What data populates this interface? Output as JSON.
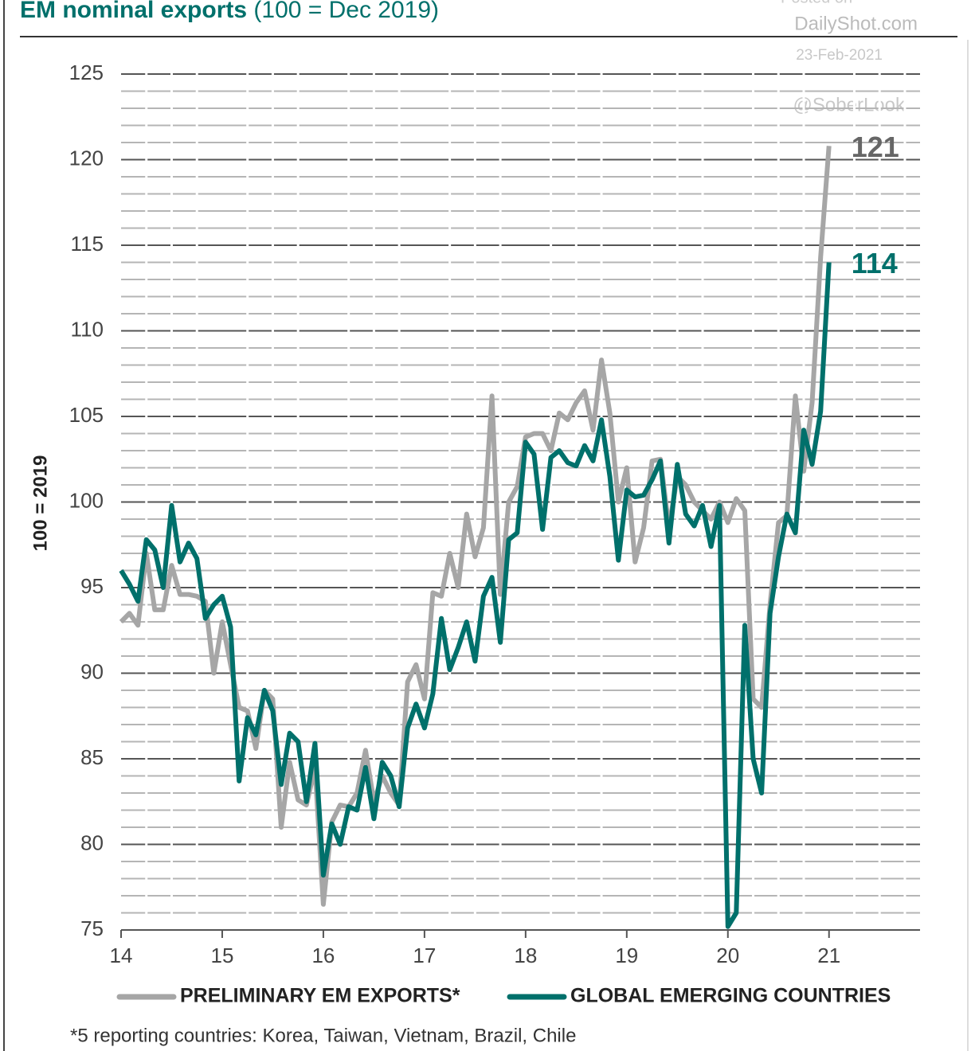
{
  "chart_data": {
    "type": "line",
    "title": "EM nominal exports",
    "subtitle": "(100 = Dec 2019)",
    "ylabel": "100 = 2019",
    "watermarks": [
      "Posted on",
      "DailyShot.com",
      "23-Feb-2021",
      "@SoberLook"
    ],
    "footnote": "*5 reporting countries: Korea, Taiwan, Vietnam, Brazil, Chile",
    "annotations": [
      {
        "text": "121",
        "series": 0
      },
      {
        "text": "114",
        "series": 1
      }
    ],
    "x": [
      14,
      14.083,
      14.167,
      14.25,
      14.333,
      14.417,
      14.5,
      14.583,
      14.667,
      14.75,
      14.833,
      14.917,
      15,
      15.083,
      15.167,
      15.25,
      15.333,
      15.417,
      15.5,
      15.583,
      15.667,
      15.75,
      15.833,
      15.917,
      16,
      16.083,
      16.167,
      16.25,
      16.333,
      16.417,
      16.5,
      16.583,
      16.667,
      16.75,
      16.833,
      16.917,
      17,
      17.083,
      17.167,
      17.25,
      17.333,
      17.417,
      17.5,
      17.583,
      17.667,
      17.75,
      17.833,
      17.917,
      18,
      18.083,
      18.167,
      18.25,
      18.333,
      18.417,
      18.5,
      18.583,
      18.667,
      18.75,
      18.833,
      18.917,
      19,
      19.083,
      19.167,
      19.25,
      19.333,
      19.417,
      19.5,
      19.583,
      19.667,
      19.75,
      19.833,
      19.917,
      20,
      20.083,
      20.167,
      20.25,
      20.333,
      20.417,
      20.5,
      20.583,
      20.667,
      20.75,
      20.833,
      20.917,
      21
    ],
    "series": [
      {
        "name": "PRELIMINARY EM EXPORTS*",
        "color": "#a6a6a6",
        "values": [
          93,
          93.5,
          92.8,
          97,
          93.7,
          93.7,
          96.3,
          94.6,
          94.6,
          94.5,
          94.2,
          90,
          93,
          90.5,
          88,
          87.8,
          85.6,
          89,
          88.5,
          81,
          84.8,
          82.6,
          82.3,
          84.5,
          76.5,
          81.3,
          82.3,
          82.2,
          83,
          85.5,
          82.5,
          84,
          83,
          82.3,
          89.5,
          90.5,
          88.5,
          94.7,
          94.5,
          97,
          95,
          99.3,
          96.8,
          98.5,
          106.2,
          94.6,
          100,
          100.9,
          103.8,
          104,
          104,
          103,
          105.2,
          104.8,
          105.8,
          106.5,
          104.2,
          108.3,
          105.2,
          100,
          102,
          96.5,
          98.5,
          102.4,
          102.5,
          98.5,
          101.5,
          101,
          100,
          99.5,
          99,
          100,
          98.8,
          100.2,
          99.5,
          88.5,
          88,
          94,
          98.8,
          99.2,
          106.2,
          101.8,
          105.8,
          114.3,
          120.8
        ]
      },
      {
        "name": "GLOBAL EMERGING COUNTRIES",
        "color": "#00706b",
        "values": [
          96,
          95.2,
          94.2,
          97.8,
          97.2,
          95,
          99.8,
          96.5,
          97.6,
          96.7,
          93.2,
          94,
          94.5,
          92.7,
          83.7,
          87.4,
          86.4,
          89,
          87.8,
          83.5,
          86.5,
          86,
          82.5,
          85.9,
          78.2,
          81.2,
          80,
          82.2,
          82,
          84.5,
          81.5,
          84.8,
          84,
          82.2,
          86.8,
          88.2,
          86.8,
          88.8,
          93.2,
          90.2,
          91.5,
          93,
          90.7,
          94.5,
          95.6,
          91.8,
          97.8,
          98.2,
          103.5,
          102.8,
          98.4,
          102.6,
          103,
          102.3,
          102.1,
          103.3,
          102.4,
          104.8,
          101.5,
          96.6,
          100.7,
          100.3,
          100.4,
          101.3,
          102.4,
          97.6,
          102.2,
          99.3,
          98.6,
          99.8,
          97.4,
          99.8,
          75.2,
          76,
          92.8,
          85,
          83,
          93.5,
          96.8,
          99.3,
          98.2,
          104.2,
          102.2,
          105.3,
          114
        ]
      }
    ],
    "xlim": [
      14,
      21.9
    ],
    "xticks": [
      14,
      15,
      16,
      17,
      18,
      19,
      20,
      21
    ],
    "ylim": [
      75,
      125
    ],
    "yticks": [
      75,
      80,
      85,
      90,
      95,
      100,
      105,
      110,
      115,
      120,
      125
    ],
    "grid": true,
    "minor_grid": true,
    "legend": "bottom"
  }
}
